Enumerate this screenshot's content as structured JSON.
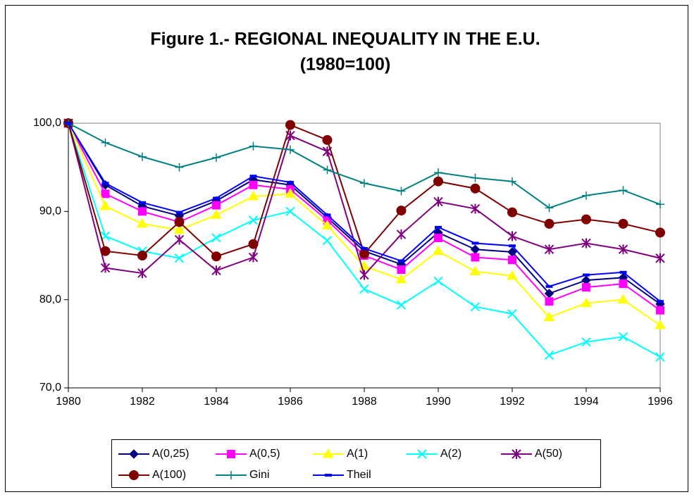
{
  "chart_data": {
    "type": "line",
    "title": [
      "Figure 1.- REGIONAL INEQUALITY IN THE E.U.",
      "(1980=100)"
    ],
    "x": [
      1980,
      1981,
      1982,
      1983,
      1984,
      1985,
      1986,
      1987,
      1988,
      1989,
      1990,
      1991,
      1992,
      1993,
      1994,
      1995,
      1996
    ],
    "xlim": [
      1980,
      1996
    ],
    "xticks": [
      1980,
      1982,
      1984,
      1986,
      1988,
      1990,
      1992,
      1994,
      1996
    ],
    "ylim": [
      70,
      100
    ],
    "yticks": [
      {
        "value": 70,
        "label": "70,0"
      },
      {
        "value": 80,
        "label": "80,0"
      },
      {
        "value": 90,
        "label": "90,0"
      },
      {
        "value": 100,
        "label": "100,0"
      }
    ],
    "grid": false,
    "legend": "bottom",
    "series": [
      {
        "name": "A(0,25)",
        "color": "#000080",
        "marker": "diamond",
        "values": [
          100,
          93.0,
          90.6,
          89.5,
          91.2,
          93.6,
          93.0,
          89.3,
          85.5,
          84.0,
          87.6,
          85.7,
          85.4,
          80.7,
          82.2,
          82.5,
          79.5
        ]
      },
      {
        "name": "A(0,5)",
        "color": "#FF00FF",
        "marker": "square",
        "values": [
          100,
          92.0,
          90.0,
          88.8,
          90.7,
          93.0,
          92.5,
          89.0,
          85.0,
          83.4,
          87.0,
          84.8,
          84.5,
          79.8,
          81.4,
          81.8,
          78.8
        ]
      },
      {
        "name": "A(1)",
        "color": "#FFFF00",
        "marker": "triangle",
        "values": [
          100,
          90.6,
          88.6,
          87.9,
          89.6,
          91.7,
          92.0,
          88.4,
          83.8,
          82.3,
          85.5,
          83.2,
          82.7,
          78.0,
          79.6,
          80.0,
          77.1
        ]
      },
      {
        "name": "A(2)",
        "color": "#00FFFF",
        "marker": "x",
        "values": [
          100,
          87.2,
          85.5,
          84.7,
          87.0,
          89.0,
          90.0,
          86.7,
          81.2,
          79.4,
          82.1,
          79.2,
          78.4,
          73.7,
          75.2,
          75.8,
          73.5
        ]
      },
      {
        "name": "A(50)",
        "color": "#800080",
        "marker": "star",
        "values": [
          100,
          83.6,
          83.0,
          86.8,
          83.3,
          84.8,
          98.6,
          96.8,
          82.8,
          87.4,
          91.1,
          90.3,
          87.2,
          85.7,
          86.4,
          85.7,
          84.7
        ]
      },
      {
        "name": "A(100)",
        "color": "#800000",
        "marker": "circle",
        "values": [
          100,
          85.5,
          85.0,
          88.8,
          84.9,
          86.3,
          99.8,
          98.1,
          85.2,
          90.1,
          93.4,
          92.6,
          89.9,
          88.6,
          89.1,
          88.6,
          87.6
        ]
      },
      {
        "name": "Gini",
        "color": "#008080",
        "marker": "plus",
        "values": [
          100,
          97.8,
          96.2,
          95.0,
          96.1,
          97.4,
          97.0,
          94.7,
          93.2,
          92.3,
          94.4,
          93.8,
          93.4,
          90.4,
          91.8,
          92.4,
          90.8
        ]
      },
      {
        "name": "Theil",
        "color": "#0000FF",
        "marker": "dash",
        "values": [
          100,
          93.2,
          91.0,
          89.9,
          91.5,
          94.0,
          93.3,
          89.6,
          85.8,
          84.4,
          88.2,
          86.4,
          86.1,
          81.5,
          82.8,
          83.1,
          79.8
        ]
      }
    ]
  }
}
